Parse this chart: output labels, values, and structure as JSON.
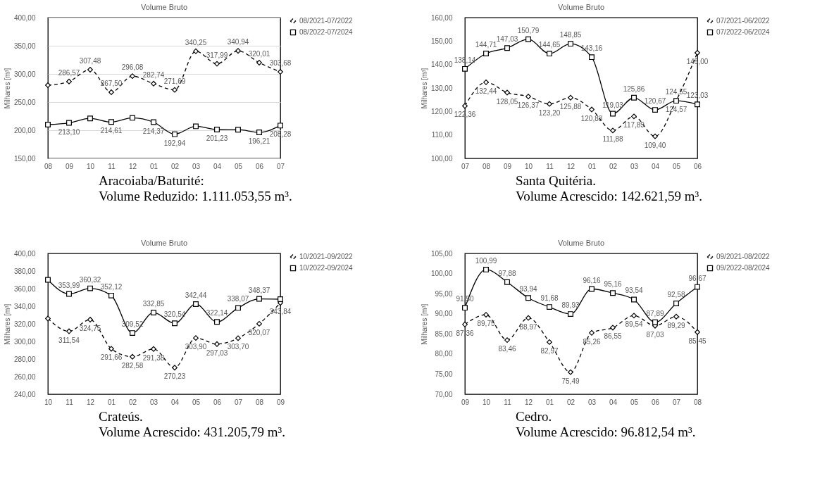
{
  "chart_data": [
    {
      "type": "line",
      "title": "Volume Bruto",
      "ylabel": "Milhares [m³]",
      "categories": [
        "08",
        "09",
        "10",
        "11",
        "12",
        "01",
        "02",
        "03",
        "04",
        "05",
        "06",
        "07"
      ],
      "ylim": [
        150,
        400
      ],
      "yticks": [
        {
          "value": 150,
          "label": "150,00"
        },
        {
          "value": 200,
          "label": "200,00"
        },
        {
          "value": 250,
          "label": "250,00"
        },
        {
          "value": 300,
          "label": "300,00"
        },
        {
          "value": 350,
          "label": "350,00"
        },
        {
          "value": 400,
          "label": "400,00"
        }
      ],
      "grid": "y",
      "legend": "right",
      "series": [
        {
          "name": "08/2021-07/2022",
          "color": "#000000",
          "line_style": "dashed",
          "marker": "diamond",
          "values": [
            280,
            286.57,
            307.48,
            267.5,
            296.08,
            282.74,
            271.69,
            340.25,
            317.99,
            340.94,
            320.01,
            303.68
          ],
          "value_labels": [
            null,
            "286,57",
            "307,48",
            "267,50",
            "296,08",
            "282,74",
            "271,69",
            "340,25",
            "317,99",
            "340,94",
            "320,01",
            "303,68"
          ]
        },
        {
          "name": "08/2022-07/2024",
          "color": "#000000",
          "line_style": "solid",
          "marker": "square",
          "values": [
            210,
            213.1,
            221,
            214.61,
            222,
            214.37,
            192.94,
            207,
            201.23,
            201,
            196.21,
            208.28
          ],
          "value_labels": [
            null,
            "213,10",
            null,
            "214,61",
            null,
            "214,37",
            "192,94",
            null,
            "201,23",
            null,
            "196,21",
            "208,28"
          ]
        }
      ],
      "annotations": [
        "Aracoiaba/Baturité:",
        "Volume Reduzido: 1.111.053,55 m³."
      ]
    },
    {
      "type": "line",
      "title": "Volume Bruto",
      "ylabel": "Milhares [m³]",
      "categories": [
        "07",
        "08",
        "09",
        "10",
        "11",
        "12",
        "01",
        "02",
        "03",
        "04",
        "05",
        "06"
      ],
      "ylim": [
        100,
        160
      ],
      "yticks": [
        {
          "value": 100,
          "label": "100,00"
        },
        {
          "value": 110,
          "label": "110,00"
        },
        {
          "value": 120,
          "label": "120,00"
        },
        {
          "value": 130,
          "label": "130,00"
        },
        {
          "value": 140,
          "label": "140,00"
        },
        {
          "value": 150,
          "label": "150,00"
        },
        {
          "value": 160,
          "label": "160,00"
        }
      ],
      "legend": "right",
      "series": [
        {
          "name": "07/2021-06/2022",
          "color": "#000000",
          "line_style": "dashed",
          "marker": "diamond",
          "values": [
            122.36,
            132.44,
            128.05,
            126.37,
            123.2,
            125.88,
            120.83,
            111.88,
            117.89,
            109.4,
            124.57,
            145.0
          ],
          "value_labels": [
            "122,36",
            "132,44",
            "128,05",
            "126,37",
            "123,20",
            "125,88",
            "120,83",
            "111,88",
            "117,89",
            "109,40",
            "124,57",
            "145,00"
          ]
        },
        {
          "name": "07/2022-06/2024",
          "color": "#000000",
          "line_style": "solid",
          "marker": "square",
          "values": [
            138.14,
            144.71,
            147.03,
            150.79,
            144.65,
            148.85,
            143.16,
            119.03,
            125.86,
            120.67,
            124.55,
            123.03
          ],
          "value_labels": [
            "138,14",
            "144,71",
            "147,03",
            "150,79",
            "144,65",
            "148,85",
            "143,16",
            "119,03",
            "125,86",
            "120,67",
            "124,55",
            "123,03"
          ]
        }
      ],
      "annotations": [
        "Santa Quitéria.",
        "Volume Acrescido: 142.621,59 m³."
      ]
    },
    {
      "type": "line",
      "title": "Volume Bruto",
      "ylabel": "Milhares [m³]",
      "categories": [
        "10",
        "11",
        "12",
        "01",
        "02",
        "03",
        "04",
        "05",
        "06",
        "07",
        "08",
        "09"
      ],
      "ylim": [
        240,
        400
      ],
      "yticks": [
        {
          "value": 240,
          "label": "240,00"
        },
        {
          "value": 260,
          "label": "260,00"
        },
        {
          "value": 280,
          "label": "280,00"
        },
        {
          "value": 300,
          "label": "300,00"
        },
        {
          "value": 320,
          "label": "320,00"
        },
        {
          "value": 340,
          "label": "340,00"
        },
        {
          "value": 360,
          "label": "360,00"
        },
        {
          "value": 380,
          "label": "380,00"
        },
        {
          "value": 400,
          "label": "400,00"
        }
      ],
      "legend": "right",
      "series": [
        {
          "name": "10/2021-09/2022",
          "color": "#000000",
          "line_style": "dashed",
          "marker": "diamond",
          "values": [
            326,
            311.54,
            324.75,
            291.66,
            282.58,
            291.38,
            270.23,
            303.9,
            297.03,
            303.7,
            320.07,
            343.84
          ],
          "value_labels": [
            null,
            "311,54",
            "324,75",
            "291,66",
            "282,58",
            "291,38",
            "270,23",
            "303,90",
            "297,03",
            "303,70",
            "320,07",
            "343,84"
          ]
        },
        {
          "name": "10/2022-09/2024",
          "color": "#000000",
          "line_style": "solid",
          "marker": "square",
          "values": [
            370,
            353.99,
            360.32,
            352.12,
            309.52,
            332.85,
            320.54,
            342.44,
            322.14,
            338.07,
            348.37,
            348
          ],
          "value_labels": [
            null,
            "353,99",
            "360,32",
            "352,12",
            "309,52",
            "332,85",
            "320,54",
            "342,44",
            "322,14",
            "338,07",
            "348,37",
            null
          ]
        }
      ],
      "annotations": [
        "Crateús.",
        "Volume Acrescido: 431.205,79 m³."
      ]
    },
    {
      "type": "line",
      "title": "Volume Bruto",
      "ylabel": "Milhares [m³]",
      "categories": [
        "09",
        "10",
        "11",
        "12",
        "01",
        "02",
        "03",
        "04",
        "05",
        "06",
        "07",
        "08"
      ],
      "ylim": [
        70,
        105
      ],
      "yticks": [
        {
          "value": 70,
          "label": "70,00"
        },
        {
          "value": 75,
          "label": "75,00"
        },
        {
          "value": 80,
          "label": "80,00"
        },
        {
          "value": 85,
          "label": "85,00"
        },
        {
          "value": 90,
          "label": "90,00"
        },
        {
          "value": 95,
          "label": "95,00"
        },
        {
          "value": 100,
          "label": "100,00"
        },
        {
          "value": 105,
          "label": "105,00"
        }
      ],
      "legend": "right",
      "series": [
        {
          "name": "09/2021-08/2022",
          "color": "#000000",
          "line_style": "dashed",
          "marker": "diamond",
          "values": [
            87.36,
            89.75,
            83.46,
            88.97,
            82.97,
            75.49,
            85.26,
            86.55,
            89.54,
            87.03,
            89.29,
            85.45
          ],
          "value_labels": [
            "87,36",
            "89,75",
            "83,46",
            "88,97",
            "82,97",
            "75,49",
            "85,26",
            "86,55",
            "89,54",
            "87,03",
            "89,29",
            "85,45"
          ]
        },
        {
          "name": "09/2022-08/2024",
          "color": "#000000",
          "line_style": "solid",
          "marker": "square",
          "values": [
            91.5,
            100.99,
            97.88,
            93.94,
            91.68,
            89.93,
            96.16,
            95.16,
            93.54,
            87.89,
            92.58,
            96.67
          ],
          "value_labels": [
            "91,50",
            "100,99",
            "97,88",
            "93,94",
            "91,68",
            "89,93",
            "96,16",
            "95,16",
            "93,54",
            "87,89",
            "92,58",
            "96,67"
          ]
        }
      ],
      "annotations": [
        "Cedro.",
        "Volume Acrescido: 96.812,54 m³."
      ]
    }
  ]
}
